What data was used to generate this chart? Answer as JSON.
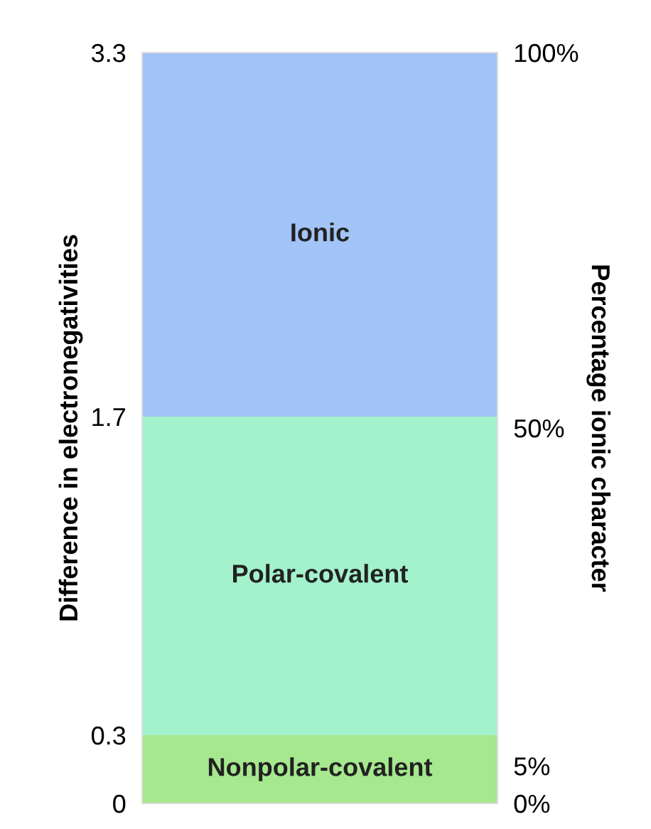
{
  "chart_data": {
    "type": "bar",
    "stacked": true,
    "categories": [
      null
    ],
    "ylabel": "Difference in electronegativities",
    "y2label": "Percentage ionic character",
    "ylim": [
      0,
      3.3
    ],
    "yticks": [
      0,
      0.3,
      1.7,
      3.3
    ],
    "y2lim": [
      0,
      100
    ],
    "y2ticks": [
      {
        "value": 0,
        "label": "0%"
      },
      {
        "value": 5,
        "label": "5%"
      },
      {
        "value": 50,
        "label": "50%"
      },
      {
        "value": 100,
        "label": "100%"
      }
    ],
    "series": [
      {
        "name": "Nonpolar-covalent",
        "color": "#a6e88e",
        "values": [
          0.3
        ]
      },
      {
        "name": "Polar-covalent",
        "color": "#a4f2cc",
        "values": [
          1.4
        ]
      },
      {
        "name": "Ionic",
        "color": "#a2c4f6",
        "values": [
          1.6
        ]
      }
    ]
  }
}
